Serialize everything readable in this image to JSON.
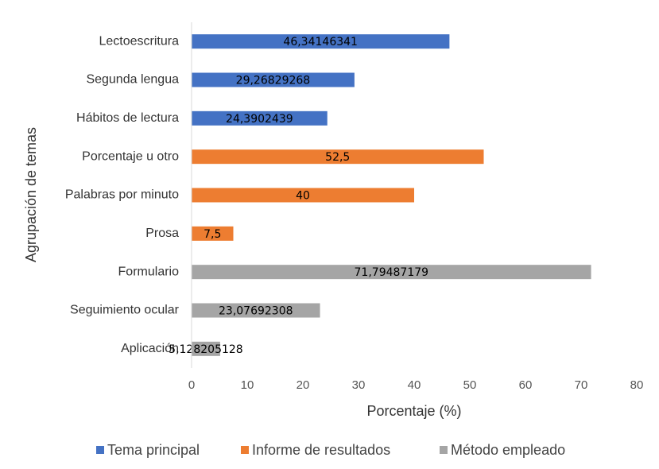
{
  "chart_data": {
    "type": "bar",
    "orientation": "horizontal",
    "xlabel": "Porcentaje (%)",
    "ylabel": "Agrupación de temas",
    "categories": [
      "Lectoescritura",
      "Segunda lengua",
      "Hábitos de lectura",
      "Porcentaje u otro",
      "Palabras por minuto",
      "Prosa",
      "Formulario",
      "Seguimiento ocular",
      "Aplicación"
    ],
    "series": [
      {
        "name": "Tema principal",
        "color": "#4472c4",
        "values": [
          46.34146341,
          29.26829268,
          24.3902439,
          null,
          null,
          null,
          null,
          null,
          null
        ],
        "value_labels": [
          "46,34146341",
          "29,26829268",
          "24,3902439",
          null,
          null,
          null,
          null,
          null,
          null
        ]
      },
      {
        "name": "Informe de resultados",
        "color": "#ed7d31",
        "values": [
          null,
          null,
          null,
          52.5,
          40,
          7.5,
          null,
          null,
          null
        ],
        "value_labels": [
          null,
          null,
          null,
          "52,5",
          null,
          "7,5",
          null,
          null,
          null
        ]
      },
      {
        "name": "Método empleado",
        "color": "#a5a5a5",
        "values": [
          null,
          null,
          null,
          null,
          null,
          null,
          71.79487179,
          23.07692308,
          5.128205128
        ],
        "value_labels": [
          null,
          null,
          null,
          null,
          null,
          null,
          "71,79487179",
          "23,07692308",
          "5,128205128"
        ]
      }
    ],
    "xlim": [
      0,
      80
    ],
    "xticks": [
      0,
      10,
      20,
      30,
      40,
      50,
      60,
      70,
      80
    ],
    "grid": false,
    "legend": "bottom"
  }
}
